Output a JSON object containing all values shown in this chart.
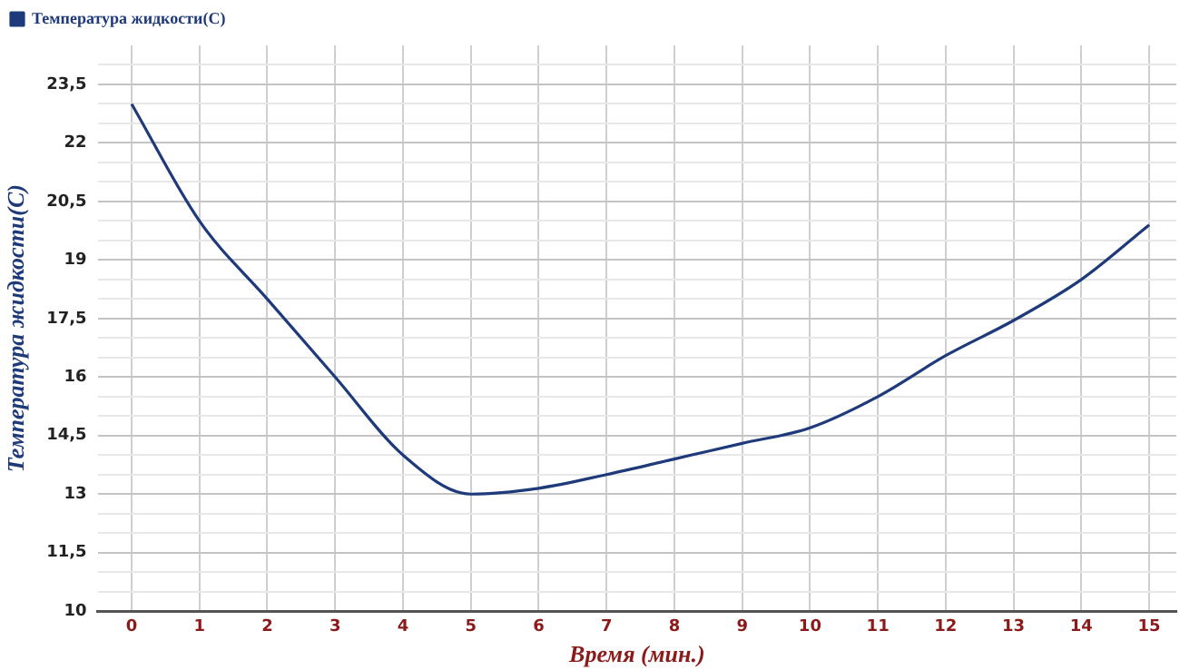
{
  "chart_data": {
    "type": "line",
    "xlabel": "Время (мин.)",
    "ylabel": "Температура жидкости(С)",
    "x": [
      0,
      1,
      2,
      3,
      4,
      5,
      6,
      7,
      8,
      9,
      10,
      11,
      12,
      13,
      14,
      15
    ],
    "series": [
      {
        "name": "Температура жидкости(С)",
        "color": "#1f3a7a",
        "values": [
          23.0,
          20.0,
          18.0,
          16.0,
          14.0,
          13.0,
          13.15,
          13.5,
          13.9,
          14.3,
          14.7,
          15.5,
          16.55,
          17.45,
          18.5,
          19.9
        ]
      }
    ],
    "xlim": [
      -0.5,
      15.4
    ],
    "xticks": [
      0,
      1,
      2,
      3,
      4,
      5,
      6,
      7,
      8,
      9,
      10,
      11,
      12,
      13,
      14,
      15
    ],
    "ylim": [
      10,
      24.5
    ],
    "yticks": [
      10,
      {
        "value": 10.5,
        "label": null
      },
      {
        "value": 11,
        "label": null
      },
      {
        "value": 11.5,
        "label": "11,5"
      },
      {
        "value": 12,
        "label": null
      },
      {
        "value": 12.5,
        "label": null
      },
      13,
      {
        "value": 13.5,
        "label": null
      },
      {
        "value": 14,
        "label": null
      },
      {
        "value": 14.5,
        "label": "14,5"
      },
      {
        "value": 15,
        "label": null
      },
      {
        "value": 15.5,
        "label": null
      },
      16,
      {
        "value": 16.5,
        "label": null
      },
      {
        "value": 17,
        "label": null
      },
      {
        "value": 17.5,
        "label": "17,5"
      },
      {
        "value": 18,
        "label": null
      },
      {
        "value": 18.5,
        "label": null
      },
      19,
      {
        "value": 19.5,
        "label": null
      },
      {
        "value": 20,
        "label": null
      },
      {
        "value": 20.5,
        "label": "20,5"
      },
      {
        "value": 21,
        "label": null
      },
      {
        "value": 21.5,
        "label": null
      },
      22,
      {
        "value": 22.5,
        "label": null
      },
      {
        "value": 23,
        "label": null
      },
      {
        "value": 23.5,
        "label": "23,5"
      },
      {
        "value": 24,
        "label": null
      }
    ],
    "grid": true,
    "legend": "top left",
    "marker": "none",
    "line_style": "solid"
  }
}
